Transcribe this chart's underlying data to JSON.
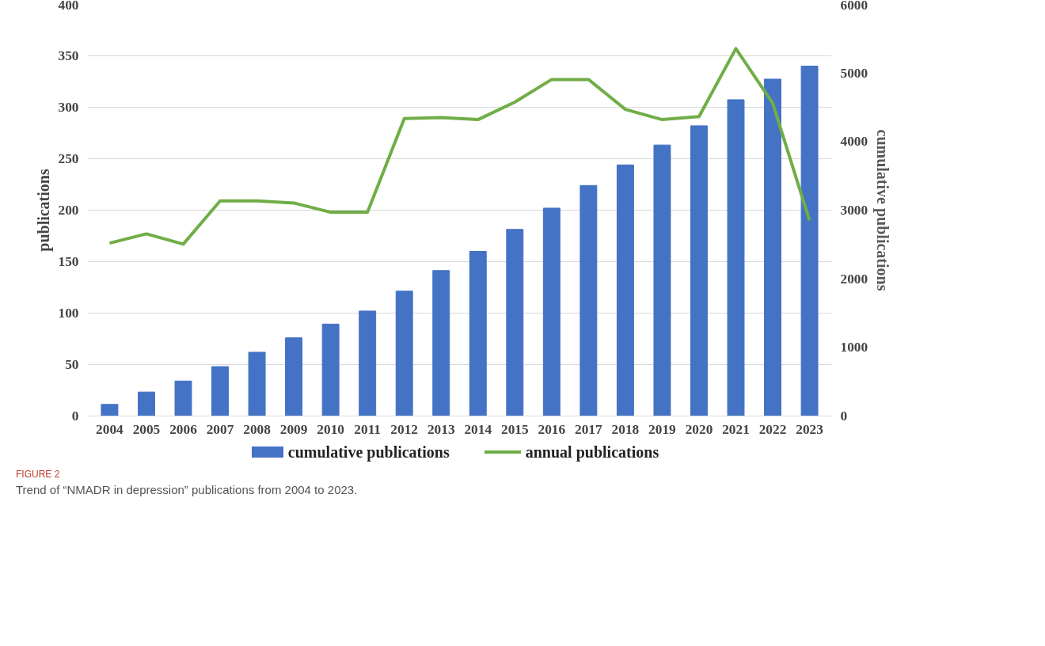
{
  "chart_data": {
    "type": "bar",
    "categories": [
      "2004",
      "2005",
      "2006",
      "2007",
      "2008",
      "2009",
      "2010",
      "2011",
      "2012",
      "2013",
      "2014",
      "2015",
      "2016",
      "2017",
      "2018",
      "2019",
      "2020",
      "2021",
      "2022",
      "2023"
    ],
    "series": [
      {
        "name": "cumulative publications",
        "axis": "y2",
        "color": "#4472c4",
        "values": [
          170,
          350,
          510,
          720,
          930,
          1140,
          1340,
          1530,
          1820,
          2120,
          2400,
          2720,
          3030,
          3360,
          3660,
          3950,
          4230,
          4610,
          4910,
          5100
        ]
      },
      {
        "name": "annual publications",
        "type": "line",
        "color": "#70ad47",
        "values": [
          168,
          177,
          167,
          209,
          209,
          207,
          198,
          198,
          289,
          290,
          288,
          305,
          327,
          327,
          298,
          288,
          291,
          357,
          304,
          190
        ]
      }
    ],
    "ylabel": "publications",
    "y2label": "cumulative publications",
    "ylim": [
      0,
      400
    ],
    "yticks": [
      0,
      50,
      100,
      150,
      200,
      250,
      300,
      350,
      400
    ],
    "y2lim": [
      0,
      6000
    ],
    "y2ticks": [
      0,
      1000,
      2000,
      3000,
      4000,
      5000,
      6000
    ],
    "grid": "y",
    "legend": "bottom",
    "marker": "none",
    "line_style": "solid",
    "annotations": [
      "FIGURE 2",
      "Trend of “NMADR in depression” publications from 2004 to 2023."
    ]
  }
}
